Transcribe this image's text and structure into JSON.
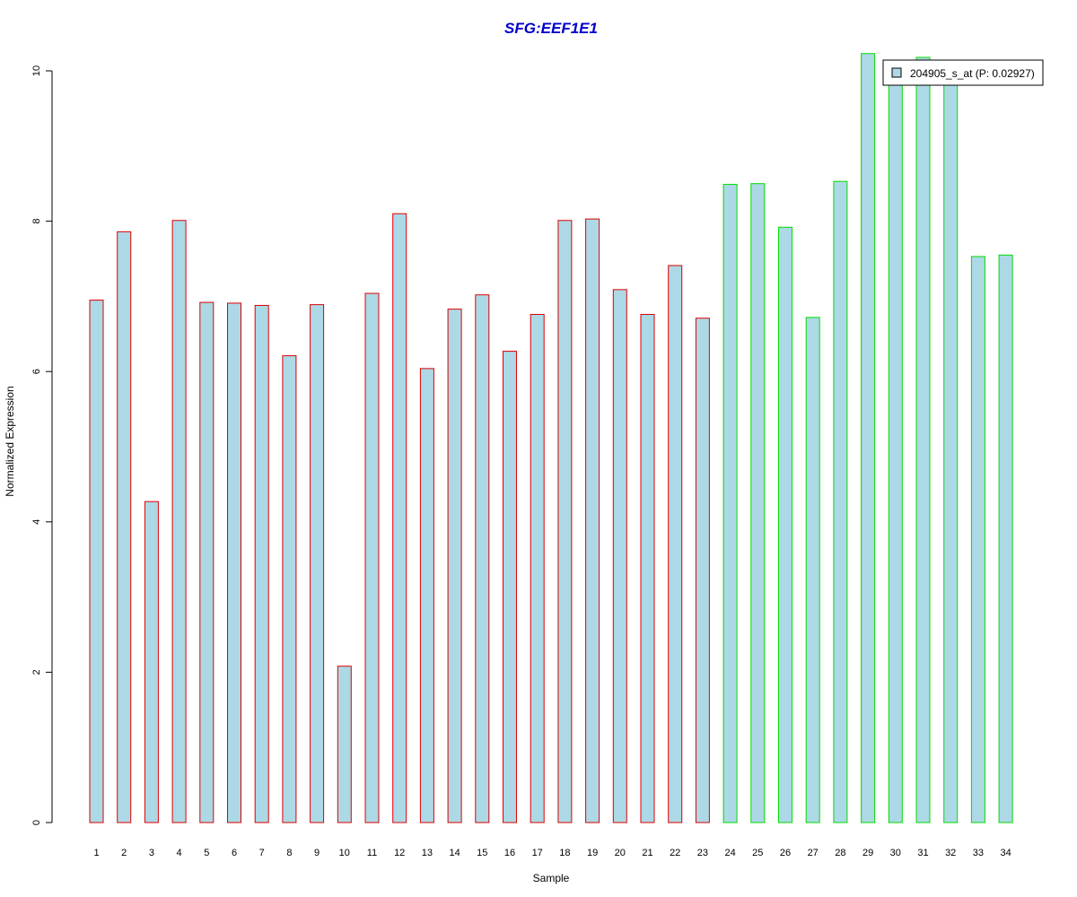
{
  "chart_data": {
    "type": "bar",
    "title": "SFG:EEF1E1",
    "xlabel": "Sample",
    "ylabel": "Normalized Expression",
    "ylim": [
      0,
      10
    ],
    "yticks": [
      0,
      2,
      4,
      6,
      8,
      10
    ],
    "grid": false,
    "legend": {
      "position": "top-right",
      "label": "204905_s_at (P: 0.02927)"
    },
    "categories": [
      "1",
      "2",
      "3",
      "4",
      "5",
      "6",
      "7",
      "8",
      "9",
      "10",
      "11",
      "12",
      "13",
      "14",
      "15",
      "16",
      "17",
      "18",
      "19",
      "20",
      "21",
      "22",
      "23",
      "24",
      "25",
      "26",
      "27",
      "28",
      "29",
      "30",
      "31",
      "32",
      "33",
      "34"
    ],
    "values": [
      6.95,
      7.86,
      4.27,
      8.01,
      6.92,
      6.91,
      6.88,
      6.21,
      6.89,
      2.08,
      7.04,
      8.1,
      6.04,
      6.83,
      7.02,
      6.27,
      6.76,
      8.01,
      8.03,
      7.09,
      6.76,
      7.41,
      6.71,
      8.49,
      8.5,
      7.92,
      6.72,
      8.53,
      10.23,
      9.97,
      10.18,
      9.92,
      7.53,
      7.55
    ],
    "groups": [
      "1",
      "1",
      "1",
      "1",
      "1",
      "1",
      "1",
      "1",
      "1",
      "1",
      "1",
      "1",
      "1",
      "1",
      "1",
      "1",
      "1",
      "1",
      "1",
      "1",
      "1",
      "1",
      "1",
      "2",
      "2",
      "2",
      "2",
      "2",
      "2",
      "2",
      "2",
      "2",
      "2",
      "2"
    ],
    "colors": {
      "title": "#0000cc",
      "fill": "#add8e6",
      "group1_border": "#dd0000",
      "group2_border": "#00dd00",
      "axis": "#000000"
    }
  }
}
